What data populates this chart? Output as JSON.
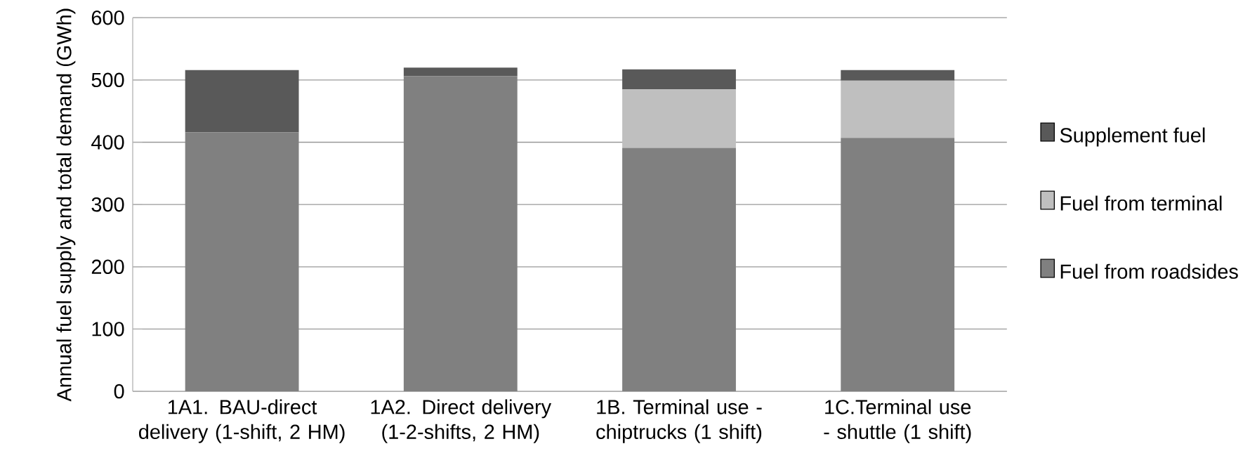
{
  "chart_data": {
    "type": "bar",
    "stacked": true,
    "ylabel": "Annual fuel supply and total demand (GWh)",
    "categories": [
      "1A1. BAU-direct delivery (1-shift, 2 HM)",
      "1A2. Direct delivery (1-2-shifts, 2 HM)",
      "1B. Terminal use - chiptrucks (1 shift)",
      "1C.Terminal use - shuttle (1 shift)"
    ],
    "series": [
      {
        "name": "Fuel from roadsides",
        "color": "#808080",
        "values": [
          416,
          506,
          391,
          407
        ]
      },
      {
        "name": "Fuel from terminal",
        "color": "#bfbfbf",
        "values": [
          0,
          0,
          94,
          92
        ]
      },
      {
        "name": "Supplement fuel",
        "color": "#595959",
        "values": [
          100,
          14,
          32,
          17
        ]
      }
    ],
    "ylim": [
      0,
      600
    ],
    "yticks": [
      0,
      100,
      200,
      300,
      400,
      500,
      600
    ],
    "grid": "y",
    "legend": "right"
  }
}
